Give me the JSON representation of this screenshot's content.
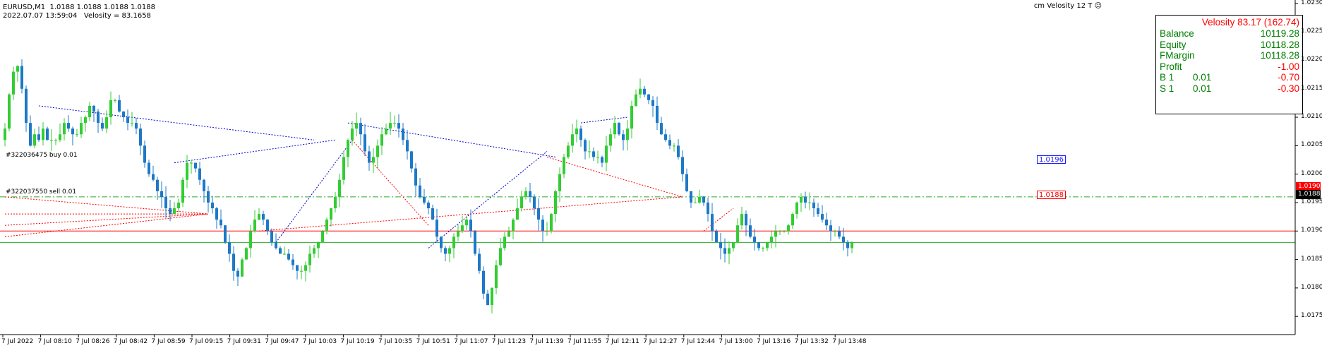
{
  "header": {
    "symbol_line": "EURUSD,M1  1.0188 1.0188 1.0188 1.0188",
    "info_line": "2022.07.07 13:59:04   Velosity = 83.1658"
  },
  "indicator_title": "cm Velosity 12 T",
  "indicator_icon": "smiley-icon",
  "panel": {
    "velocity": "Velosity 83.17  (162.74)",
    "rows": [
      {
        "label": "Balance",
        "mid": "",
        "value": "10119.28",
        "color": "green"
      },
      {
        "label": "Equity",
        "mid": "",
        "value": "10118.28",
        "color": "green"
      },
      {
        "label": "FMargin",
        "mid": "",
        "value": "10118.28",
        "color": "green"
      },
      {
        "label": "Profit",
        "mid": "",
        "value": "-1.00",
        "color": "red"
      },
      {
        "label": "B 1",
        "mid": "0.01",
        "value": "-0.70",
        "color": "red"
      },
      {
        "label": "S 1",
        "mid": "0.01",
        "value": "-0.30",
        "color": "red"
      }
    ]
  },
  "orders": {
    "buy_label": "#322036475 buy 0.01",
    "sell_label": "#322037550 sell 0.01",
    "buy_price_tag": "1.0196",
    "sell_price_tag": "1.0188"
  },
  "price_tags": {
    "red_line": "1.0190",
    "current": "1.0188"
  },
  "colors": {
    "bull": "#32cd32",
    "bear": "#1e78c8",
    "buy_line": "#2eaa2e",
    "sell_line": "#ff0000",
    "grid_blue": "#0000cd",
    "grid_red": "#ff0000"
  },
  "chart_data": {
    "type": "candlestick",
    "symbol": "EURUSD",
    "timeframe": "M1",
    "y_ticks": [
      "1.0230",
      "1.0225",
      "1.0220",
      "1.0215",
      "1.0210",
      "1.0205",
      "1.0200",
      "1.0195",
      "1.0190",
      "1.0185",
      "1.0180",
      "1.0175"
    ],
    "x_ticks": [
      "7 Jul 2022",
      "7 Jul 08:10",
      "7 Jul 08:26",
      "7 Jul 08:42",
      "7 Jul 08:59",
      "7 Jul 09:15",
      "7 Jul 09:31",
      "7 Jul 09:47",
      "7 Jul 10:03",
      "7 Jul 10:19",
      "7 Jul 10:35",
      "7 Jul 10:51",
      "7 Jul 11:07",
      "7 Jul 11:23",
      "7 Jul 11:39",
      "7 Jul 11:55",
      "7 Jul 12:11",
      "7 Jul 12:27",
      "7 Jul 12:44",
      "7 Jul 13:00",
      "7 Jul 13:16",
      "7 Jul 13:32",
      "7 Jul 13:48"
    ],
    "ylim": [
      1.01718,
      1.02306
    ],
    "horizontal_levels": [
      {
        "price": 1.0196,
        "style": "dash-dot",
        "color": "#2eaa2e"
      },
      {
        "price": 1.019,
        "style": "solid",
        "color": "#ff0000"
      },
      {
        "price": 1.0188,
        "style": "solid",
        "color": "#2eaa2e"
      }
    ],
    "series": [
      {
        "name": "EURUSD",
        "values": [
          1.0208,
          1.0214,
          1.0218,
          1.0219,
          1.0215,
          1.0209,
          1.0205,
          1.0207,
          1.0206,
          1.0208,
          1.0206,
          1.0206,
          1.0206,
          1.0207,
          1.0209,
          1.0208,
          1.0207,
          1.0207,
          1.0209,
          1.021,
          1.0212,
          1.0211,
          1.0209,
          1.0208,
          1.021,
          1.0213,
          1.0213,
          1.0211,
          1.021,
          1.0209,
          1.0209,
          1.0208,
          1.0205,
          1.0202,
          1.02,
          1.0199,
          1.0197,
          1.0196,
          1.0194,
          1.0193,
          1.0194,
          1.0195,
          1.0199,
          1.0202,
          1.0202,
          1.0201,
          1.0199,
          1.0197,
          1.0195,
          1.0194,
          1.0192,
          1.0191,
          1.0188,
          1.0186,
          1.0183,
          1.0182,
          1.0185,
          1.0187,
          1.019,
          1.0192,
          1.0193,
          1.0192,
          1.019,
          1.0188,
          1.0187,
          1.0186,
          1.0186,
          1.0185,
          1.0184,
          1.0183,
          1.0183,
          1.0184,
          1.0186,
          1.0187,
          1.0188,
          1.019,
          1.0192,
          1.0194,
          1.0196,
          1.0199,
          1.0203,
          1.0206,
          1.0208,
          1.0209,
          1.0207,
          1.0204,
          1.0202,
          1.0203,
          1.0205,
          1.0207,
          1.0208,
          1.0209,
          1.0209,
          1.0208,
          1.0206,
          1.0204,
          1.0201,
          1.0198,
          1.0196,
          1.0195,
          1.0194,
          1.0192,
          1.0189,
          1.0187,
          1.0186,
          1.0187,
          1.0189,
          1.019,
          1.0191,
          1.0192,
          1.019,
          1.0186,
          1.0183,
          1.0179,
          1.0177,
          1.018,
          1.0184,
          1.0187,
          1.0189,
          1.019,
          1.0192,
          1.0194,
          1.0196,
          1.0197,
          1.0196,
          1.0194,
          1.0192,
          1.019,
          1.019,
          1.0193,
          1.0197,
          1.02,
          1.0203,
          1.0205,
          1.0207,
          1.0208,
          1.0206,
          1.0204,
          1.0204,
          1.0203,
          1.0203,
          1.0202,
          1.0205,
          1.0207,
          1.0209,
          1.0207,
          1.0206,
          1.0208,
          1.0212,
          1.0214,
          1.0215,
          1.0214,
          1.0213,
          1.0212,
          1.0209,
          1.0207,
          1.0206,
          1.0205,
          1.0205,
          1.0203,
          1.02,
          1.0197,
          1.0195,
          1.0195,
          1.0196,
          1.0195,
          1.0193,
          1.019,
          1.0188,
          1.0187,
          1.0186,
          1.0187,
          1.0188,
          1.0191,
          1.0193,
          1.0191,
          1.0189,
          1.0188,
          1.0187,
          1.0187,
          1.0188,
          1.0189,
          1.019,
          1.019,
          1.019,
          1.0191,
          1.0193,
          1.0195,
          1.0196,
          1.0195,
          1.0195,
          1.0194,
          1.0193,
          1.0192,
          1.0191,
          1.019,
          1.019,
          1.0189,
          1.0188,
          1.0187,
          1.0188
        ]
      }
    ]
  }
}
